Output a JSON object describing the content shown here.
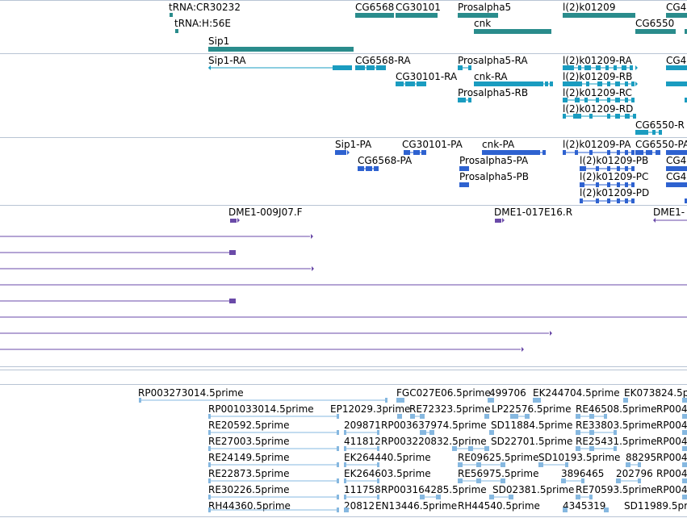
{
  "colors": {
    "track1": "#2a8c8c",
    "track2": "#1a9cc0",
    "track3": "#2e62d0",
    "track4": "#6a4aa8",
    "track5": "#86b8e0",
    "separator": "#b8c4d4"
  },
  "track1": {
    "labels": [
      "tRNA:CR30232",
      "tRNA:H:56E",
      "Sip1",
      "CG6568",
      "CG30101",
      "Prosalpha5",
      "cnk",
      "l(2)k01209",
      "CG6550",
      "CG4"
    ]
  },
  "track2": {
    "labels": [
      "Sip1-RA",
      "CG6568-RA",
      "CG30101-RA",
      "Prosalpha5-RA",
      "cnk-RA",
      "Prosalpha5-RB",
      "l(2)k01209-RA",
      "l(2)k01209-RB",
      "l(2)k01209-RC",
      "l(2)k01209-RD",
      "CG6550-R",
      "CG4"
    ]
  },
  "track3": {
    "labels": [
      "Sip1-PA",
      "CG30101-PA",
      "cnk-PA",
      "l(2)k01209-PA",
      "CG6550-PA",
      "CG6568-PA",
      "Prosalpha5-PA",
      "l(2)k01209-PB",
      "CG4",
      "Prosalpha5-PB",
      "l(2)k01209-PC",
      "CG4",
      "l(2)k01209-PD"
    ]
  },
  "track4": {
    "labels": [
      "DME1-009J07.F",
      "DME1-017E16.R",
      "DME1-"
    ]
  },
  "track5": {
    "labels": [
      "RP003273014.5prime",
      "FGC027E06.5prime",
      "499706",
      "EK244704.5prime",
      "EK073824.5p",
      "RP001033014.5prime",
      "EP12029.3prime",
      "RE72323.5prime",
      "LP22576.5prime",
      "RE46508.5prime",
      "RP004",
      "RE20592.5prime",
      "209871",
      "RP003637974.5prime",
      "SD11884.5prime",
      "RE33803.5prime",
      "RP004",
      "RE27003.5prime",
      "411812",
      "RP003220832.5prime",
      "SD22701.5prime",
      "RE25431.5prime",
      "RP004",
      "RE24149.5prime",
      "EK264440.5prime",
      "RE09625.5prime",
      "SD10193.5prime",
      "88295",
      "RP004",
      "RE22873.5prime",
      "EK264603.5prime",
      "RE56975.5prime",
      "3896465",
      "202796",
      "RP004",
      "RE30226.5prime",
      "111758",
      "RP003164285.5prime",
      "SD02381.5prime",
      "RE70593.5prime",
      "RP004",
      "RH44360.5prime",
      "20812",
      "EN13446.5prime",
      "RH44540.5prime",
      "4345319",
      "SD11989.5pr"
    ]
  }
}
